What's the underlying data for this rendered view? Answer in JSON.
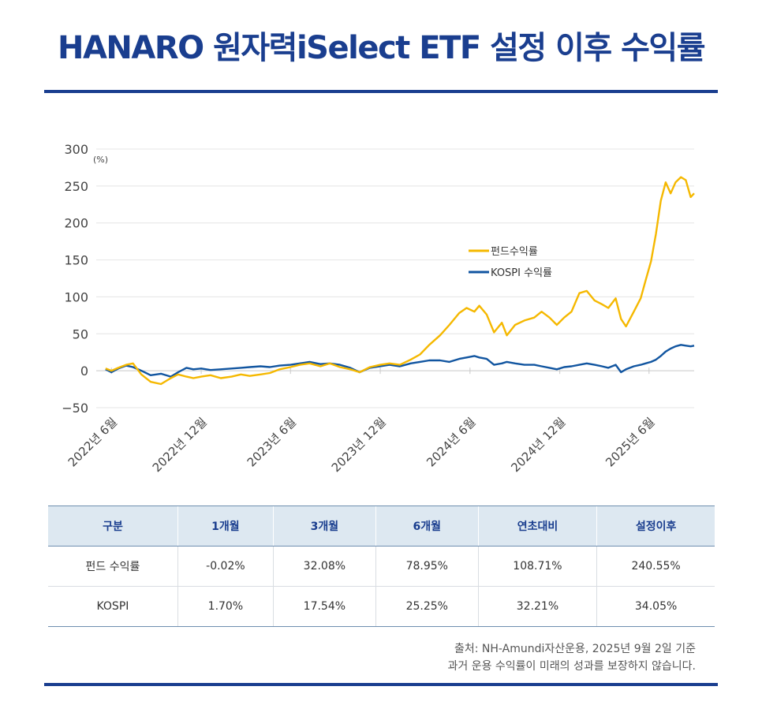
{
  "header": {
    "title": "HANARO 원자력iSelect ETF 설정 이후 수익률"
  },
  "chart_data": {
    "type": "line",
    "unit_label": "(%)",
    "ylim": [
      -50,
      300
    ],
    "yticks": [
      300,
      250,
      200,
      150,
      100,
      50,
      0,
      -50
    ],
    "x_tick_labels": [
      "2022년 6월",
      "2022년 12월",
      "2023년 6월",
      "2023년 12월",
      "2024년 6월",
      "2024년 12월",
      "2025년 6월"
    ],
    "x_ticks": [
      "2022-06",
      "2022-12",
      "2023-06",
      "2023-12",
      "2024-06",
      "2024-12",
      "2025-06"
    ],
    "xlim": [
      "2022-05",
      "2025-09"
    ],
    "grid": true,
    "legend_position": "center-right",
    "series": [
      {
        "name": "펀드수익률",
        "color": "#f5b800",
        "x": [
          "2022-05-20",
          "2022-06-01",
          "2022-06-15",
          "2022-07-01",
          "2022-07-15",
          "2022-08-01",
          "2022-08-20",
          "2022-09-10",
          "2022-09-30",
          "2022-10-15",
          "2022-11-01",
          "2022-11-15",
          "2022-12-01",
          "2022-12-20",
          "2023-01-10",
          "2023-02-01",
          "2023-02-20",
          "2023-03-10",
          "2023-04-01",
          "2023-04-20",
          "2023-05-10",
          "2023-06-01",
          "2023-06-20",
          "2023-07-10",
          "2023-08-01",
          "2023-08-20",
          "2023-09-10",
          "2023-10-01",
          "2023-10-20",
          "2023-11-10",
          "2023-12-01",
          "2023-12-20",
          "2024-01-10",
          "2024-02-01",
          "2024-02-20",
          "2024-03-10",
          "2024-04-01",
          "2024-04-20",
          "2024-05-10",
          "2024-05-25",
          "2024-06-10",
          "2024-06-20",
          "2024-07-05",
          "2024-07-20",
          "2024-08-05",
          "2024-08-15",
          "2024-09-01",
          "2024-09-20",
          "2024-10-10",
          "2024-10-25",
          "2024-11-10",
          "2024-11-25",
          "2024-12-10",
          "2024-12-25",
          "2025-01-10",
          "2025-01-25",
          "2025-02-10",
          "2025-02-25",
          "2025-03-10",
          "2025-03-25",
          "2025-04-05",
          "2025-04-15",
          "2025-05-01",
          "2025-05-15",
          "2025-05-25",
          "2025-06-05",
          "2025-06-15",
          "2025-06-25",
          "2025-07-05",
          "2025-07-15",
          "2025-07-25",
          "2025-08-05",
          "2025-08-15",
          "2025-08-25",
          "2025-09-01"
        ],
        "y": [
          3,
          0,
          4,
          8,
          10,
          -5,
          -15,
          -18,
          -10,
          -5,
          -8,
          -10,
          -8,
          -6,
          -10,
          -8,
          -5,
          -7,
          -5,
          -3,
          2,
          5,
          8,
          10,
          6,
          10,
          5,
          2,
          -2,
          5,
          8,
          10,
          8,
          15,
          22,
          35,
          48,
          62,
          78,
          85,
          80,
          88,
          76,
          52,
          65,
          48,
          62,
          68,
          72,
          80,
          72,
          62,
          72,
          80,
          105,
          108,
          95,
          90,
          85,
          98,
          70,
          60,
          80,
          98,
          122,
          148,
          185,
          230,
          255,
          240,
          255,
          262,
          258,
          235,
          240
        ]
      },
      {
        "name": "KOSPI 수익률",
        "color": "#1155a0",
        "x": [
          "2022-05-20",
          "2022-06-01",
          "2022-06-15",
          "2022-07-01",
          "2022-07-15",
          "2022-08-01",
          "2022-08-20",
          "2022-09-10",
          "2022-09-30",
          "2022-10-15",
          "2022-11-01",
          "2022-11-15",
          "2022-12-01",
          "2022-12-20",
          "2023-01-10",
          "2023-02-01",
          "2023-02-20",
          "2023-03-10",
          "2023-04-01",
          "2023-04-20",
          "2023-05-10",
          "2023-06-01",
          "2023-06-20",
          "2023-07-10",
          "2023-08-01",
          "2023-08-20",
          "2023-09-10",
          "2023-10-01",
          "2023-10-20",
          "2023-11-10",
          "2023-12-01",
          "2023-12-20",
          "2024-01-10",
          "2024-02-01",
          "2024-02-20",
          "2024-03-10",
          "2024-04-01",
          "2024-04-20",
          "2024-05-10",
          "2024-05-25",
          "2024-06-10",
          "2024-06-20",
          "2024-07-05",
          "2024-07-20",
          "2024-08-05",
          "2024-08-15",
          "2024-09-01",
          "2024-09-20",
          "2024-10-10",
          "2024-10-25",
          "2024-11-10",
          "2024-11-25",
          "2024-12-10",
          "2024-12-25",
          "2025-01-10",
          "2025-01-25",
          "2025-02-10",
          "2025-02-25",
          "2025-03-10",
          "2025-03-25",
          "2025-04-05",
          "2025-04-15",
          "2025-05-01",
          "2025-05-15",
          "2025-05-25",
          "2025-06-05",
          "2025-06-15",
          "2025-06-25",
          "2025-07-05",
          "2025-07-15",
          "2025-07-25",
          "2025-08-05",
          "2025-08-15",
          "2025-08-25",
          "2025-09-01"
        ],
        "y": [
          2,
          -2,
          3,
          7,
          5,
          0,
          -6,
          -4,
          -8,
          -2,
          4,
          2,
          3,
          1,
          2,
          3,
          4,
          5,
          6,
          5,
          7,
          8,
          10,
          12,
          9,
          10,
          8,
          4,
          -2,
          4,
          6,
          8,
          6,
          10,
          12,
          14,
          14,
          12,
          16,
          18,
          20,
          18,
          16,
          8,
          10,
          12,
          10,
          8,
          8,
          6,
          4,
          2,
          5,
          6,
          8,
          10,
          8,
          6,
          4,
          8,
          -2,
          2,
          6,
          8,
          10,
          12,
          15,
          20,
          26,
          30,
          33,
          35,
          34,
          33,
          34
        ]
      }
    ]
  },
  "table": {
    "headers": [
      "구분",
      "1개월",
      "3개월",
      "6개월",
      "연초대비",
      "설정이후"
    ],
    "rows": [
      [
        "펀드 수익률",
        "-0.02%",
        "32.08%",
        "78.95%",
        "108.71%",
        "240.55%"
      ],
      [
        "KOSPI",
        "1.70%",
        "17.54%",
        "25.25%",
        "32.21%",
        "34.05%"
      ]
    ]
  },
  "footnote": {
    "source": "출처: NH-Amundi자산운용, 2025년 9월 2일 기준",
    "disclaimer": "과거 운용 수익률이 미래의 성과를 보장하지 않습니다."
  }
}
